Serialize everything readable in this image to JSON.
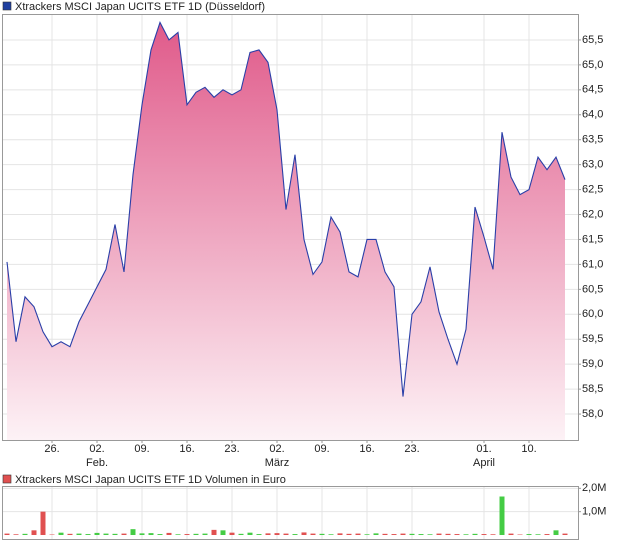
{
  "chart_data": [
    {
      "type": "area",
      "title": "Xtrackers MSCI Japan UCITS ETF 1D (Düsseldorf)",
      "legend_color": "#1f3fa0",
      "color": "#2a3fa8",
      "fill_top": "#e05a8a",
      "fill_bottom": "#fdf2f6",
      "grid": true,
      "categories": [
        null,
        null,
        null,
        null,
        null,
        "26.",
        null,
        null,
        null,
        null,
        "02.",
        null,
        null,
        null,
        null,
        "09.",
        null,
        null,
        null,
        null,
        "16.",
        null,
        null,
        null,
        null,
        "23.",
        null,
        null,
        null,
        null,
        "02.",
        null,
        null,
        null,
        null,
        "09.",
        null,
        null,
        null,
        null,
        "16.",
        null,
        null,
        null,
        null,
        "23.",
        null,
        null,
        null,
        null,
        null,
        null,
        null,
        "01.",
        null,
        null,
        null,
        null,
        "10.",
        null,
        null,
        null,
        null
      ],
      "month_labels": [
        null,
        null,
        null,
        null,
        null,
        null,
        null,
        null,
        null,
        null,
        "Feb.",
        null,
        null,
        null,
        null,
        null,
        null,
        null,
        null,
        null,
        null,
        null,
        null,
        null,
        null,
        null,
        null,
        null,
        null,
        null,
        "März",
        null,
        null,
        null,
        null,
        null,
        null,
        null,
        null,
        null,
        null,
        null,
        null,
        null,
        null,
        null,
        null,
        null,
        null,
        null,
        null,
        null,
        null,
        "April",
        null,
        null,
        null,
        null,
        null,
        null,
        null,
        null,
        null
      ],
      "values": [
        61.05,
        59.45,
        60.35,
        60.15,
        59.65,
        59.35,
        59.45,
        59.35,
        59.85,
        60.2,
        60.55,
        60.9,
        61.8,
        60.85,
        62.8,
        64.2,
        65.3,
        65.85,
        65.5,
        65.65,
        64.2,
        64.45,
        64.55,
        64.35,
        64.5,
        64.4,
        64.5,
        65.25,
        65.3,
        65.05,
        64.1,
        62.1,
        63.2,
        61.5,
        60.8,
        61.05,
        61.95,
        61.65,
        60.85,
        60.75,
        61.5,
        61.5,
        60.85,
        60.55,
        58.35,
        60.0,
        60.25,
        60.95,
        60.05,
        59.5,
        59.0,
        59.7,
        62.15,
        61.55,
        60.9,
        63.65,
        62.75,
        62.4,
        62.5,
        63.15,
        62.9,
        63.15,
        62.7
      ],
      "ylim": [
        57.48,
        66.02
      ],
      "yticks": [
        {
          "value": 58.0,
          "label": "58,0"
        },
        {
          "value": 58.5,
          "label": "58,5"
        },
        {
          "value": 59.0,
          "label": "59,0"
        },
        {
          "value": 59.5,
          "label": "59,5"
        },
        {
          "value": 60.0,
          "label": "60,0"
        },
        {
          "value": 60.5,
          "label": "60,5"
        },
        {
          "value": 61.0,
          "label": "61,0"
        },
        {
          "value": 61.5,
          "label": "61,5"
        },
        {
          "value": 62.0,
          "label": "62,0"
        },
        {
          "value": 62.5,
          "label": "62,5"
        },
        {
          "value": 63.0,
          "label": "63,0"
        },
        {
          "value": 63.5,
          "label": "63,5"
        },
        {
          "value": 64.0,
          "label": "64,0"
        },
        {
          "value": 64.5,
          "label": "64,5"
        },
        {
          "value": 65.0,
          "label": "65,0"
        },
        {
          "value": 65.5,
          "label": "65,5"
        }
      ]
    },
    {
      "type": "bar",
      "title": "Xtrackers MSCI Japan UCITS ETF 1D Volumen in Euro",
      "legend_color": "#e05050",
      "grid": true,
      "values": [
        60000,
        30000,
        50000,
        200000,
        1000000,
        20000,
        100000,
        50000,
        60000,
        40000,
        90000,
        60000,
        50000,
        60000,
        250000,
        70000,
        80000,
        40000,
        90000,
        30000,
        40000,
        50000,
        60000,
        220000,
        200000,
        100000,
        50000,
        100000,
        40000,
        70000,
        80000,
        60000,
        40000,
        110000,
        60000,
        50000,
        30000,
        70000,
        50000,
        60000,
        30000,
        70000,
        50000,
        40000,
        60000,
        50000,
        40000,
        30000,
        60000,
        50000,
        40000,
        30000,
        50000,
        40000,
        30000,
        1650000,
        60000,
        20000,
        40000,
        30000,
        40000,
        200000,
        60000
      ],
      "colors": [
        "#e05050",
        "#e05050",
        "#44cc44",
        "#e05050",
        "#e05050",
        "#e05050",
        "#44cc44",
        "#e05050",
        "#44cc44",
        "#44cc44",
        "#44cc44",
        "#44cc44",
        "#44cc44",
        "#e05050",
        "#44cc44",
        "#44cc44",
        "#44cc44",
        "#44cc44",
        "#e05050",
        "#44cc44",
        "#e05050",
        "#44cc44",
        "#44cc44",
        "#e05050",
        "#44cc44",
        "#e05050",
        "#44cc44",
        "#44cc44",
        "#44cc44",
        "#e05050",
        "#e05050",
        "#e05050",
        "#44cc44",
        "#e05050",
        "#e05050",
        "#44cc44",
        "#44cc44",
        "#e05050",
        "#e05050",
        "#e05050",
        "#44cc44",
        "#44cc44",
        "#e05050",
        "#e05050",
        "#e05050",
        "#44cc44",
        "#44cc44",
        "#44cc44",
        "#e05050",
        "#e05050",
        "#e05050",
        "#44cc44",
        "#44cc44",
        "#e05050",
        "#e05050",
        "#44cc44",
        "#e05050",
        "#e05050",
        "#44cc44",
        "#44cc44",
        "#e05050",
        "#44cc44",
        "#e05050"
      ],
      "ylim": [
        0,
        2100000
      ],
      "yticks": [
        {
          "value": 1000000,
          "label": "1,0M"
        },
        {
          "value": 2000000,
          "label": "2,0M"
        }
      ]
    }
  ]
}
